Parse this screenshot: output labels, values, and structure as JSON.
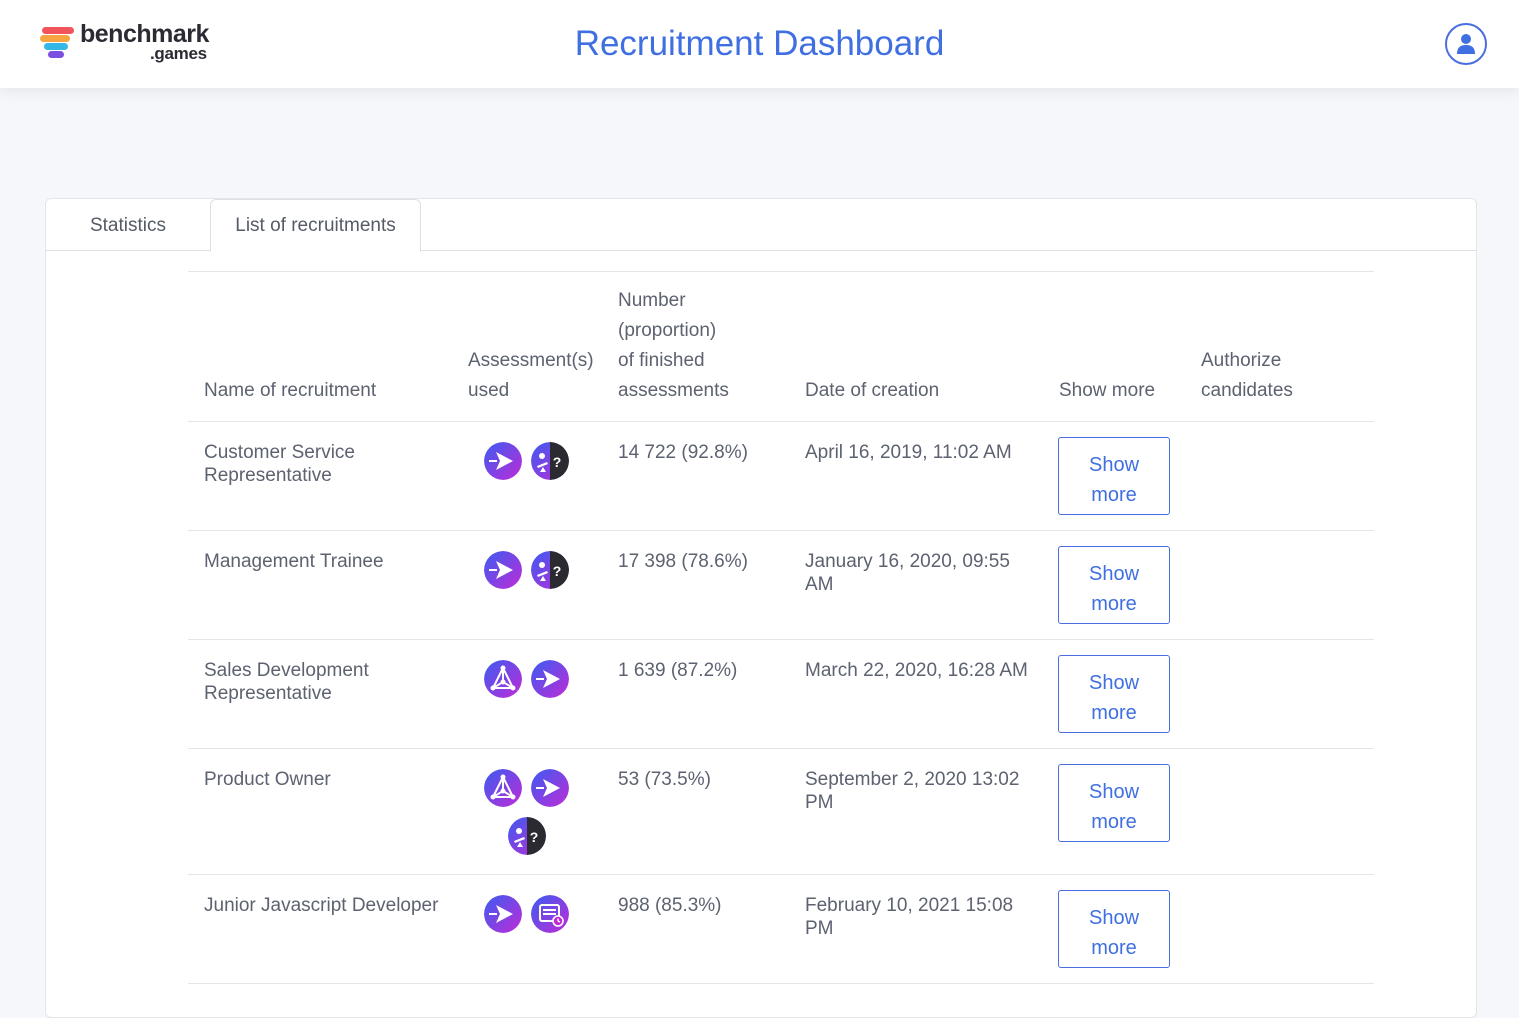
{
  "header": {
    "logo_word": "benchmark",
    "logo_sub": ".games",
    "title": "Recruitment Dashboard"
  },
  "tabs": [
    {
      "label": "Statistics",
      "active": false
    },
    {
      "label": "List of recruitments",
      "active": true
    }
  ],
  "table": {
    "columns": {
      "name": "Name of recruitment",
      "assessments": [
        "Assessment(s)",
        "used"
      ],
      "finished": [
        "Number",
        "(proportion)",
        "of finished",
        "assessments"
      ],
      "date": "Date of creation",
      "show_more": "Show more",
      "authorize": [
        "Authorize",
        "candidates"
      ]
    },
    "rows": [
      {
        "name": [
          "Customer Service",
          "Representative"
        ],
        "icons": [
          "arrow-assessment-icon",
          "balance-question-assessment-icon"
        ],
        "finished": "14 722 (92.8%)",
        "date": [
          "April 16, 2019, 11:02 AM"
        ],
        "button": [
          "Show",
          "more"
        ]
      },
      {
        "name": [
          "Management Trainee"
        ],
        "icons": [
          "arrow-assessment-icon",
          "balance-question-assessment-icon"
        ],
        "finished": "17 398 (78.6%)",
        "date": [
          "January 16, 2020, 09:55",
          "AM"
        ],
        "button": [
          "Show",
          "more"
        ]
      },
      {
        "name": [
          "Sales Development",
          "Representative"
        ],
        "icons": [
          "network-assessment-icon",
          "arrow-assessment-icon"
        ],
        "finished": "1 639 (87.2%)",
        "date": [
          "March 22, 2020, 16:28 AM"
        ],
        "button": [
          "Show",
          "more"
        ]
      },
      {
        "name": [
          "Product Owner"
        ],
        "icons": [
          "network-assessment-icon",
          "arrow-assessment-icon",
          "balance-question-assessment-icon"
        ],
        "finished": "53 (73.5%)",
        "date": [
          "September 2, 2020 13:02",
          "PM"
        ],
        "button": [
          "Show",
          "more"
        ]
      },
      {
        "name": [
          "Junior Javascript Developer"
        ],
        "icons": [
          "arrow-assessment-icon",
          "calendar-clock-assessment-icon"
        ],
        "finished": "988 (85.3%)",
        "date": [
          "February 10, 2021 15:08",
          "PM"
        ],
        "button": [
          "Show",
          "more"
        ]
      }
    ]
  },
  "colors": {
    "accent": "#3f6fe0",
    "icon_gradient_start": "#3a5cf0",
    "icon_gradient_end": "#c02bd8"
  }
}
